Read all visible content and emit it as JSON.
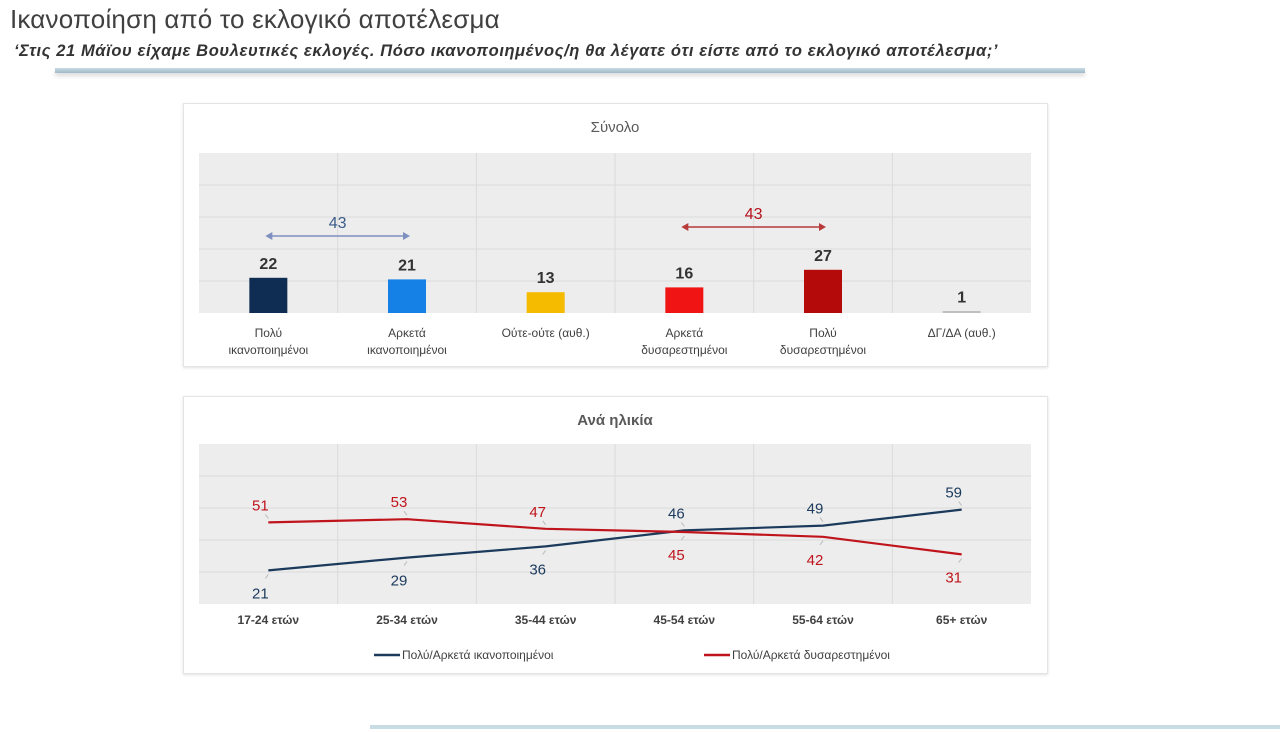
{
  "header": {
    "title": "Ικανοποίηση από το εκλογικό αποτέλεσμα",
    "subtitle": "‘Στις 21 Μάϊου είχαμε Βουλευτικές εκλογές. Πόσο ικανοποιημένος/η θα λέγατε ότι είστε από το εκλογικό αποτέλεσμα;’"
  },
  "chart_data": [
    {
      "type": "bar",
      "title": "Σύνολο",
      "categories": [
        [
          "Πολύ",
          "ικανοποιημένοι"
        ],
        [
          "Αρκετά",
          "ικανοποιημένοι"
        ],
        [
          "Ούτε-ούτε (αυθ.)"
        ],
        [
          "Αρκετά",
          "δυσαρεστημένοι"
        ],
        [
          "Πολύ",
          "δυσαρεστημένοι"
        ],
        [
          "ΔΓ/ΔΑ (αυθ.)"
        ]
      ],
      "values": [
        22,
        21,
        13,
        16,
        27,
        1
      ],
      "colors": [
        "#0f2d52",
        "#1580e6",
        "#f5bb00",
        "#f01414",
        "#b50a0a",
        "#bfbfbf"
      ],
      "ylim": [
        0,
        100
      ],
      "grid": true,
      "annotations": [
        {
          "label": "43",
          "from": 0,
          "to": 1,
          "color": "#7f8fc0",
          "text_color": "#3a5a88"
        },
        {
          "label": "43",
          "from": 3,
          "to": 4,
          "color": "#b83a3a",
          "text_color": "#b5121b"
        }
      ]
    },
    {
      "type": "line",
      "title": "Ανά ηλικία",
      "categories": [
        "17-24 ετών",
        "25-34 ετών",
        "35-44 ετών",
        "45-54 ετών",
        "55-64 ετών",
        "65+ ετών"
      ],
      "ylim": [
        0,
        100
      ],
      "grid": true,
      "legend": "bottom",
      "series": [
        {
          "name": "Πολύ/Αρκετά ικανοποιημένοι",
          "values": [
            21,
            29,
            36,
            46,
            49,
            59
          ],
          "color": "#1b3a5c",
          "label_pos": [
            "below",
            "below",
            "below",
            "above",
            "above",
            "above"
          ]
        },
        {
          "name": "Πολύ/Αρκετά δυσαρεστημένοι",
          "values": [
            51,
            53,
            47,
            45,
            42,
            31
          ],
          "color": "#c0141c",
          "label_pos": [
            "above",
            "above",
            "above",
            "below",
            "below",
            "below"
          ]
        }
      ]
    }
  ]
}
